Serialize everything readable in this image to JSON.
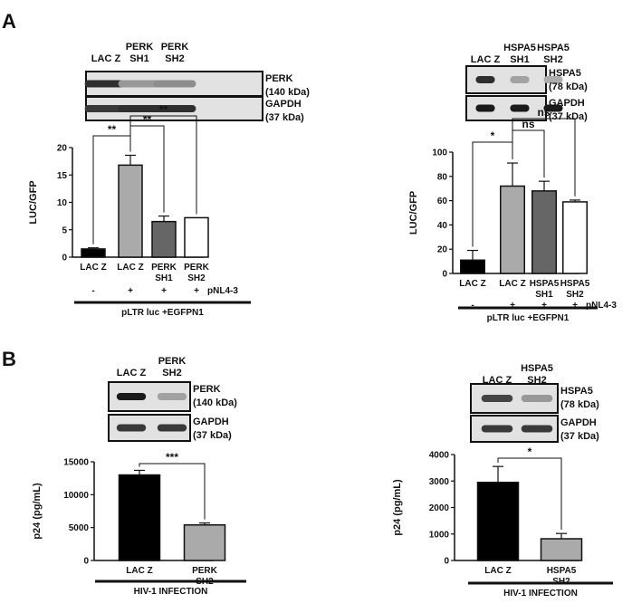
{
  "panel_labels": [
    "A",
    "B"
  ],
  "blots": [
    {
      "id": "a1",
      "lanes": [
        "LAC Z",
        "PERK\nSH1",
        "PERK\nSH2"
      ],
      "bands": [
        {
          "label": "PERK\n(140 kDa)",
          "intensity": [
            0.85,
            0.35,
            0.4
          ]
        },
        {
          "label": "GAPDH\n(37 kDa)",
          "intensity": [
            0.8,
            0.85,
            0.85
          ]
        }
      ]
    },
    {
      "id": "a2",
      "lanes": [
        "LAC Z",
        "HSPA5\nSH1",
        "HSPA5\nSH2"
      ],
      "bands": [
        {
          "label": "HSPA5\n(78 kDa)",
          "intensity": [
            0.85,
            0.3,
            0.25
          ]
        },
        {
          "label": "GAPDH\n(37 kDa)",
          "intensity": [
            0.95,
            0.95,
            0.95
          ]
        }
      ]
    },
    {
      "id": "b1",
      "lanes": [
        "LAC Z",
        "PERK\nSH2"
      ],
      "bands": [
        {
          "label": "PERK\n(140 kDa)",
          "intensity": [
            0.95,
            0.3
          ]
        },
        {
          "label": "GAPDH\n(37 kDa)",
          "intensity": [
            0.8,
            0.8
          ]
        }
      ]
    },
    {
      "id": "b2",
      "lanes": [
        "LAC Z",
        "HSPA5\nSH2"
      ],
      "bands": [
        {
          "label": "HSPA5\n(78 kDa)",
          "intensity": [
            0.75,
            0.35
          ]
        },
        {
          "label": "GAPDH\n(37 kDa)",
          "intensity": [
            0.8,
            0.8
          ]
        }
      ]
    }
  ],
  "chart_data": [
    {
      "id": "chartA1",
      "type": "bar",
      "ylabel": "LUC/GFP",
      "ylim": [
        0,
        20
      ],
      "yticks": [
        0,
        5,
        10,
        15,
        20
      ],
      "categories": [
        "LAC Z",
        "LAC Z",
        "PERK\nSH1",
        "PERK\nSH2"
      ],
      "values": [
        1.5,
        16.8,
        6.5,
        7.2
      ],
      "errors": [
        0.2,
        1.8,
        1.0,
        0
      ],
      "fills": [
        "#000000",
        "#aaaaaa",
        "#666666",
        "#ffffff"
      ],
      "pnl_label": "pNL4-3",
      "pnl_signs": [
        "-",
        "+",
        "+",
        "+"
      ],
      "bottom_label": "pLTR luc +EGFPN1",
      "sig": [
        {
          "from": 0,
          "to": 1,
          "text": "**"
        },
        {
          "from": 1,
          "to": 2,
          "text": "**"
        },
        {
          "from": 1,
          "to": 3,
          "text": "**"
        }
      ]
    },
    {
      "id": "chartA2",
      "type": "bar",
      "ylabel": "LUC/GFP",
      "ylim": [
        0,
        100
      ],
      "yticks": [
        0,
        20,
        40,
        60,
        80,
        100
      ],
      "categories": [
        "LAC Z",
        "LAC Z",
        "HSPA5\nSH1",
        "HSPA5\nSH2"
      ],
      "values": [
        11,
        72,
        68,
        59
      ],
      "errors": [
        8,
        19,
        8,
        1.5
      ],
      "fills": [
        "#000000",
        "#aaaaaa",
        "#666666",
        "#ffffff"
      ],
      "pnl_label": "pNL4-3",
      "pnl_signs": [
        "-",
        "+",
        "+",
        "+"
      ],
      "bottom_label": "pLTR luc +EGFPN1",
      "sig": [
        {
          "from": 0,
          "to": 1,
          "text": "*"
        },
        {
          "from": 1,
          "to": 2,
          "text": "ns"
        },
        {
          "from": 1,
          "to": 3,
          "text": "ns"
        }
      ]
    },
    {
      "id": "chartB1",
      "type": "bar",
      "ylabel": "p24 (pg/mL)",
      "ylim": [
        0,
        15000
      ],
      "yticks": [
        0,
        5000,
        10000,
        15000
      ],
      "categories": [
        "LAC Z",
        "PERK\nSH2"
      ],
      "values": [
        13000,
        5400
      ],
      "errors": [
        700,
        300
      ],
      "fills": [
        "#000000",
        "#aaaaaa"
      ],
      "bottom_label": "HIV-1 INFECTION",
      "sig": [
        {
          "from": 0,
          "to": 1,
          "text": "***"
        }
      ]
    },
    {
      "id": "chartB2",
      "type": "bar",
      "ylabel": "p24 (pg/mL)",
      "ylim": [
        0,
        4000
      ],
      "yticks": [
        0,
        1000,
        2000,
        3000,
        4000
      ],
      "categories": [
        "LAC Z",
        "HSPA5\nSH2"
      ],
      "values": [
        2950,
        820
      ],
      "errors": [
        600,
        200
      ],
      "fills": [
        "#000000",
        "#aaaaaa"
      ],
      "bottom_label": "HIV-1 INFECTION",
      "sig": [
        {
          "from": 0,
          "to": 1,
          "text": "*"
        }
      ]
    }
  ]
}
